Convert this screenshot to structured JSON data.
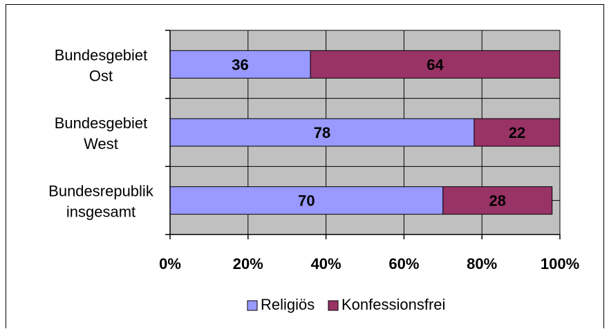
{
  "chart_data": {
    "type": "bar",
    "orientation": "horizontal",
    "stacked": true,
    "percent": true,
    "categories": [
      "Bundesgebiet Ost",
      "Bundesgebiet West",
      "Bundesrepublik insgesamt"
    ],
    "category_lines": [
      [
        "Bundesgebiet",
        "Ost"
      ],
      [
        "Bundesgebiet",
        "West"
      ],
      [
        "Bundesrepublik",
        "insgesamt"
      ]
    ],
    "series": [
      {
        "name": "Religiös",
        "values": [
          36,
          78,
          70
        ],
        "color": "#9999ff"
      },
      {
        "name": "Konfessionsfrei",
        "values": [
          64,
          22,
          28
        ],
        "color": "#993366"
      }
    ],
    "xticks": [
      "0%",
      "20%",
      "40%",
      "60%",
      "80%",
      "100%"
    ],
    "xlim": [
      0,
      100
    ],
    "grid": true,
    "legend_position": "bottom",
    "plot_background": "#c0c0c0"
  }
}
